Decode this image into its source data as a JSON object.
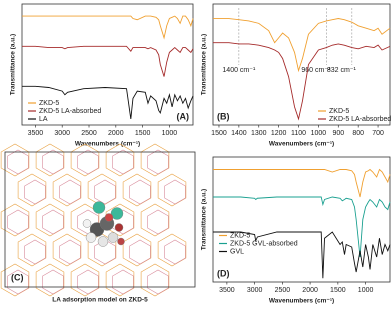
{
  "chart_data": [
    {
      "type": "line",
      "label": "(A)",
      "x_label": "Wavenumbers (cm⁻¹)",
      "y_label": "Transmittance (a.u.)",
      "xlim": [
        3750,
        560
      ],
      "xticks": [
        3500,
        3000,
        2500,
        2000,
        1500,
        1000
      ],
      "ylim": [
        0,
        1
      ],
      "legend": "lower left",
      "x": [
        3750,
        3500,
        3250,
        3000,
        2950,
        2900,
        2600,
        2200,
        1800,
        1720,
        1680,
        1600,
        1450,
        1400,
        1350,
        1250,
        1200,
        1170,
        1100,
        1050,
        1000,
        950,
        900,
        850,
        800,
        750,
        700,
        650,
        600,
        560
      ],
      "series": [
        {
          "name": "ZKD-5",
          "color": "#f0a030",
          "values": [
            0.9,
            0.9,
            0.9,
            0.9,
            0.9,
            0.9,
            0.9,
            0.9,
            0.9,
            0.9,
            0.88,
            0.87,
            0.9,
            0.9,
            0.9,
            0.89,
            0.87,
            0.82,
            0.72,
            0.82,
            0.88,
            0.89,
            0.9,
            0.88,
            0.84,
            0.9,
            0.9,
            0.87,
            0.82,
            0.88
          ]
        },
        {
          "name": "ZKD-5 LA-absorbed",
          "color": "#a52a2a",
          "values": [
            0.65,
            0.65,
            0.64,
            0.64,
            0.63,
            0.64,
            0.65,
            0.65,
            0.65,
            0.61,
            0.64,
            0.64,
            0.64,
            0.63,
            0.64,
            0.62,
            0.58,
            0.5,
            0.4,
            0.52,
            0.6,
            0.62,
            0.64,
            0.62,
            0.6,
            0.64,
            0.64,
            0.62,
            0.6,
            0.63
          ]
        },
        {
          "name": "LA",
          "color": "#111111",
          "values": [
            0.32,
            0.32,
            0.31,
            0.28,
            0.25,
            0.27,
            0.3,
            0.31,
            0.3,
            0.05,
            0.22,
            0.28,
            0.27,
            0.18,
            0.24,
            0.2,
            0.12,
            0.1,
            0.22,
            0.18,
            0.25,
            0.15,
            0.25,
            0.2,
            0.24,
            0.18,
            0.22,
            0.14,
            0.2,
            0.24
          ]
        }
      ]
    },
    {
      "type": "line",
      "label": "(B)",
      "x_label": "Wavenumbers (cm⁻¹)",
      "y_label": "Transmittance (a.u.)",
      "xlim": [
        1530,
        640
      ],
      "xticks": [
        1500,
        1400,
        1300,
        1200,
        1100,
        1000,
        900,
        800,
        700
      ],
      "ylim": [
        0,
        1
      ],
      "legend": "lower right",
      "x": [
        1530,
        1500,
        1450,
        1400,
        1350,
        1300,
        1250,
        1220,
        1200,
        1180,
        1150,
        1120,
        1100,
        1080,
        1050,
        1000,
        960,
        930,
        900,
        870,
        832,
        800,
        760,
        720,
        700,
        680,
        640
      ],
      "series": [
        {
          "name": "ZKD-5",
          "color": "#f0a030",
          "values": [
            0.88,
            0.88,
            0.88,
            0.87,
            0.86,
            0.84,
            0.78,
            0.68,
            0.72,
            0.76,
            0.72,
            0.6,
            0.45,
            0.55,
            0.75,
            0.84,
            0.86,
            0.87,
            0.88,
            0.87,
            0.85,
            0.82,
            0.8,
            0.78,
            0.8,
            0.75,
            0.8
          ]
        },
        {
          "name": "ZKD-5 LA-absorbed",
          "color": "#a52a2a",
          "values": [
            0.68,
            0.68,
            0.68,
            0.67,
            0.67,
            0.66,
            0.64,
            0.62,
            0.6,
            0.55,
            0.4,
            0.15,
            0.05,
            0.2,
            0.5,
            0.62,
            0.64,
            0.66,
            0.67,
            0.66,
            0.64,
            0.63,
            0.65,
            0.64,
            0.66,
            0.62,
            0.65
          ]
        }
      ],
      "annotations": [
        {
          "text": "1400 cm⁻¹",
          "x": 1400
        },
        {
          "text": "960 cm⁻¹",
          "x": 960
        },
        {
          "text": "832 cm⁻¹",
          "x": 832
        }
      ]
    },
    {
      "type": "image",
      "label": "(C)",
      "caption": "LA adsorption model on ZKD-5"
    },
    {
      "type": "line",
      "label": "(D)",
      "x_label": "Wavenumbers (cm⁻¹)",
      "y_label": "Transmittance (a.u.)",
      "xlim": [
        3750,
        560
      ],
      "xticks": [
        3500,
        3000,
        2500,
        2000,
        1500,
        1000
      ],
      "ylim": [
        0,
        1
      ],
      "legend": "center left",
      "x": [
        3750,
        3500,
        3250,
        3000,
        2980,
        2950,
        2600,
        2200,
        1800,
        1770,
        1740,
        1600,
        1460,
        1420,
        1380,
        1350,
        1250,
        1200,
        1170,
        1100,
        1050,
        1000,
        950,
        920,
        870,
        800,
        750,
        700,
        650,
        600,
        560
      ],
      "series": [
        {
          "name": "ZKD-5",
          "color": "#f0a030",
          "values": [
            0.9,
            0.9,
            0.9,
            0.9,
            0.9,
            0.9,
            0.9,
            0.9,
            0.9,
            0.9,
            0.9,
            0.88,
            0.9,
            0.9,
            0.9,
            0.9,
            0.89,
            0.86,
            0.8,
            0.68,
            0.8,
            0.88,
            0.89,
            0.9,
            0.88,
            0.84,
            0.9,
            0.88,
            0.84,
            0.8,
            0.86
          ]
        },
        {
          "name": "ZKD-5 GVL-absorbed",
          "color": "#1aa090",
          "values": [
            0.68,
            0.68,
            0.68,
            0.67,
            0.66,
            0.67,
            0.68,
            0.68,
            0.68,
            0.62,
            0.66,
            0.68,
            0.67,
            0.65,
            0.66,
            0.67,
            0.66,
            0.6,
            0.5,
            0.2,
            0.5,
            0.6,
            0.64,
            0.66,
            0.64,
            0.6,
            0.66,
            0.64,
            0.6,
            0.58,
            0.64
          ]
        },
        {
          "name": "GVL",
          "color": "#111111",
          "values": [
            0.4,
            0.4,
            0.4,
            0.38,
            0.33,
            0.36,
            0.4,
            0.4,
            0.4,
            0.03,
            0.35,
            0.4,
            0.3,
            0.32,
            0.22,
            0.3,
            0.28,
            0.15,
            0.08,
            0.25,
            0.12,
            0.3,
            0.2,
            0.1,
            0.3,
            0.2,
            0.35,
            0.22,
            0.3,
            0.25,
            0.3
          ]
        }
      ]
    }
  ]
}
